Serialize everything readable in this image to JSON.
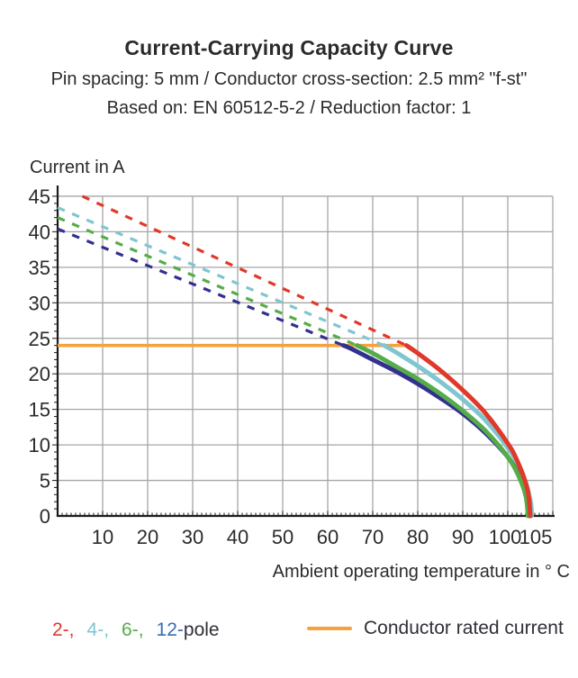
{
  "header": {
    "title": "Current-Carrying Capacity Curve",
    "subtitle_spec": "Pin spacing: 5 mm / Conductor cross-section: 2.5 mm² \"f-st\"",
    "subtitle_basis": "Based on: EN 60512-5-2 / Reduction factor: 1"
  },
  "legend": {
    "poles": [
      {
        "label": "2-,",
        "color": "#e0392a"
      },
      {
        "label": "4-,",
        "color": "#7fc6d0"
      },
      {
        "label": "6-,",
        "color": "#55ad49"
      },
      {
        "label": "12-",
        "color": "#3a6bb5"
      }
    ],
    "pole_suffix": "pole",
    "rated_label": "Conductor rated current"
  },
  "chart_data": {
    "type": "line",
    "title": "Current-Carrying Capacity Curve",
    "xlabel": "Ambient operating temperature in ° C",
    "ylabel": "Current in A",
    "xlim": [
      0,
      110
    ],
    "ylim": [
      0,
      45
    ],
    "x_major_ticks": [
      10,
      20,
      30,
      40,
      50,
      60,
      70,
      80,
      90,
      100,
      105
    ],
    "x_grid_lines": [
      10,
      20,
      30,
      40,
      50,
      60,
      70,
      80,
      90,
      100,
      110
    ],
    "y_ticks": [
      0,
      5,
      10,
      15,
      20,
      25,
      30,
      35,
      40,
      45
    ],
    "x_minor_step": 1,
    "y_minor_step": 1,
    "grid": true,
    "grid_color": "#a6a6a6",
    "axis_color": "#1b1b1b",
    "rated_current": {
      "name": "Conductor rated current",
      "value": 24,
      "temp_span": [
        0,
        77.5
      ],
      "color": "#f5a23c"
    },
    "series": [
      {
        "name": "2-pole",
        "color": "#e0392a",
        "style": "dashed-above-rated-then-solid",
        "dashed_segment": [
          [
            5.5,
            45
          ],
          [
            77.5,
            24
          ]
        ],
        "solid_points": [
          [
            77.5,
            24
          ],
          [
            80,
            22.9
          ],
          [
            85,
            20.5
          ],
          [
            90,
            17.7
          ],
          [
            95,
            14.5
          ],
          [
            100,
            10.2
          ],
          [
            102,
            7.9
          ],
          [
            104,
            4.6
          ],
          [
            104.7,
            2.5
          ],
          [
            105,
            0
          ]
        ]
      },
      {
        "name": "4-pole",
        "color": "#7fc6d0",
        "style": "dashed-above-rated-then-solid",
        "dashed_segment": [
          [
            0,
            43.4
          ],
          [
            72.5,
            24
          ]
        ],
        "solid_points": [
          [
            72.5,
            24
          ],
          [
            75,
            23.1
          ],
          [
            80,
            21.1
          ],
          [
            85,
            18.9
          ],
          [
            90,
            16.4
          ],
          [
            95,
            13.5
          ],
          [
            100,
            9.6
          ],
          [
            103,
            6.4
          ],
          [
            105,
            2.3
          ],
          [
            105.3,
            0
          ]
        ]
      },
      {
        "name": "6-pole",
        "color": "#55ad49",
        "style": "dashed-above-rated-then-solid",
        "dashed_segment": [
          [
            0,
            42.0
          ],
          [
            66.5,
            24
          ]
        ],
        "solid_points": [
          [
            66.5,
            24
          ],
          [
            70,
            22.9
          ],
          [
            75,
            21.1
          ],
          [
            80,
            19.3
          ],
          [
            85,
            17.2
          ],
          [
            90,
            14.8
          ],
          [
            95,
            12.0
          ],
          [
            100,
            8.3
          ],
          [
            102.5,
            5.5
          ],
          [
            104,
            2.8
          ],
          [
            104.5,
            0
          ]
        ]
      },
      {
        "name": "12-pole",
        "color": "#33308f",
        "style": "dashed-above-rated-then-solid",
        "dashed_segment": [
          [
            0,
            40.4
          ],
          [
            63.5,
            24
          ]
        ],
        "solid_points": [
          [
            63.5,
            24
          ],
          [
            65,
            23.6
          ],
          [
            70,
            22.0
          ],
          [
            75,
            20.4
          ],
          [
            80,
            18.6
          ],
          [
            85,
            16.6
          ],
          [
            90,
            14.4
          ],
          [
            95,
            11.7
          ],
          [
            100,
            8.3
          ],
          [
            102.5,
            5.8
          ],
          [
            104,
            3.5
          ],
          [
            104.9,
            0
          ]
        ]
      }
    ]
  }
}
